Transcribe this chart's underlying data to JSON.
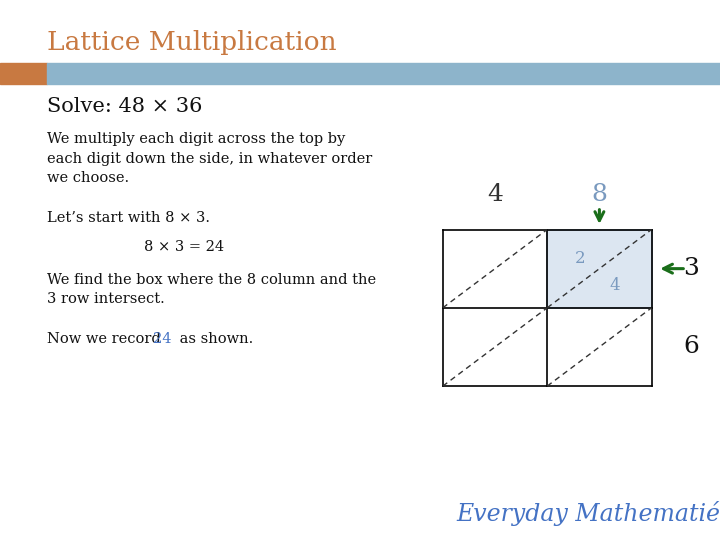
{
  "title": "Lattice Multiplication",
  "title_color": "#c87941",
  "bg_color": "#ffffff",
  "header_bar_color": "#8db4cb",
  "header_bar_left_color": "#c87941",
  "solve_text": "Solve: 48 × 36",
  "body_text_1": "We multiply each digit across the top by\neach digit down the side, in whatever order\nwe choose.",
  "body_text_2": "Let’s start with 8 × 3.",
  "body_text_3": "8 × 3 = 24",
  "body_text_4": "We find the box where the 8 column and the\n3 row intersect.",
  "body_text_5a": "Now we record ",
  "body_text_5b": "24",
  "body_text_5c": " as shown.",
  "highlight_color": "#4472c4",
  "footer_text": "Everyday Mathematié",
  "footer_color": "#4472c4",
  "digit_top": [
    "4",
    "8"
  ],
  "digit_top_colors": [
    "#333333",
    "#7a9abf"
  ],
  "digit_side": [
    "3",
    "6"
  ],
  "grid_color": "#000000",
  "diag_color": "#333333",
  "highlight_cell_color": "#dce6f1",
  "highlight_cell_border": "#9ab4cc",
  "cell_value_upper": "2",
  "cell_value_lower": "4",
  "cell_value_color": "#7a9abf",
  "arrow_color": "#1a6e1a",
  "gl": 0.615,
  "gb": 0.285,
  "cs": 0.145,
  "nc": 2,
  "nr": 2
}
